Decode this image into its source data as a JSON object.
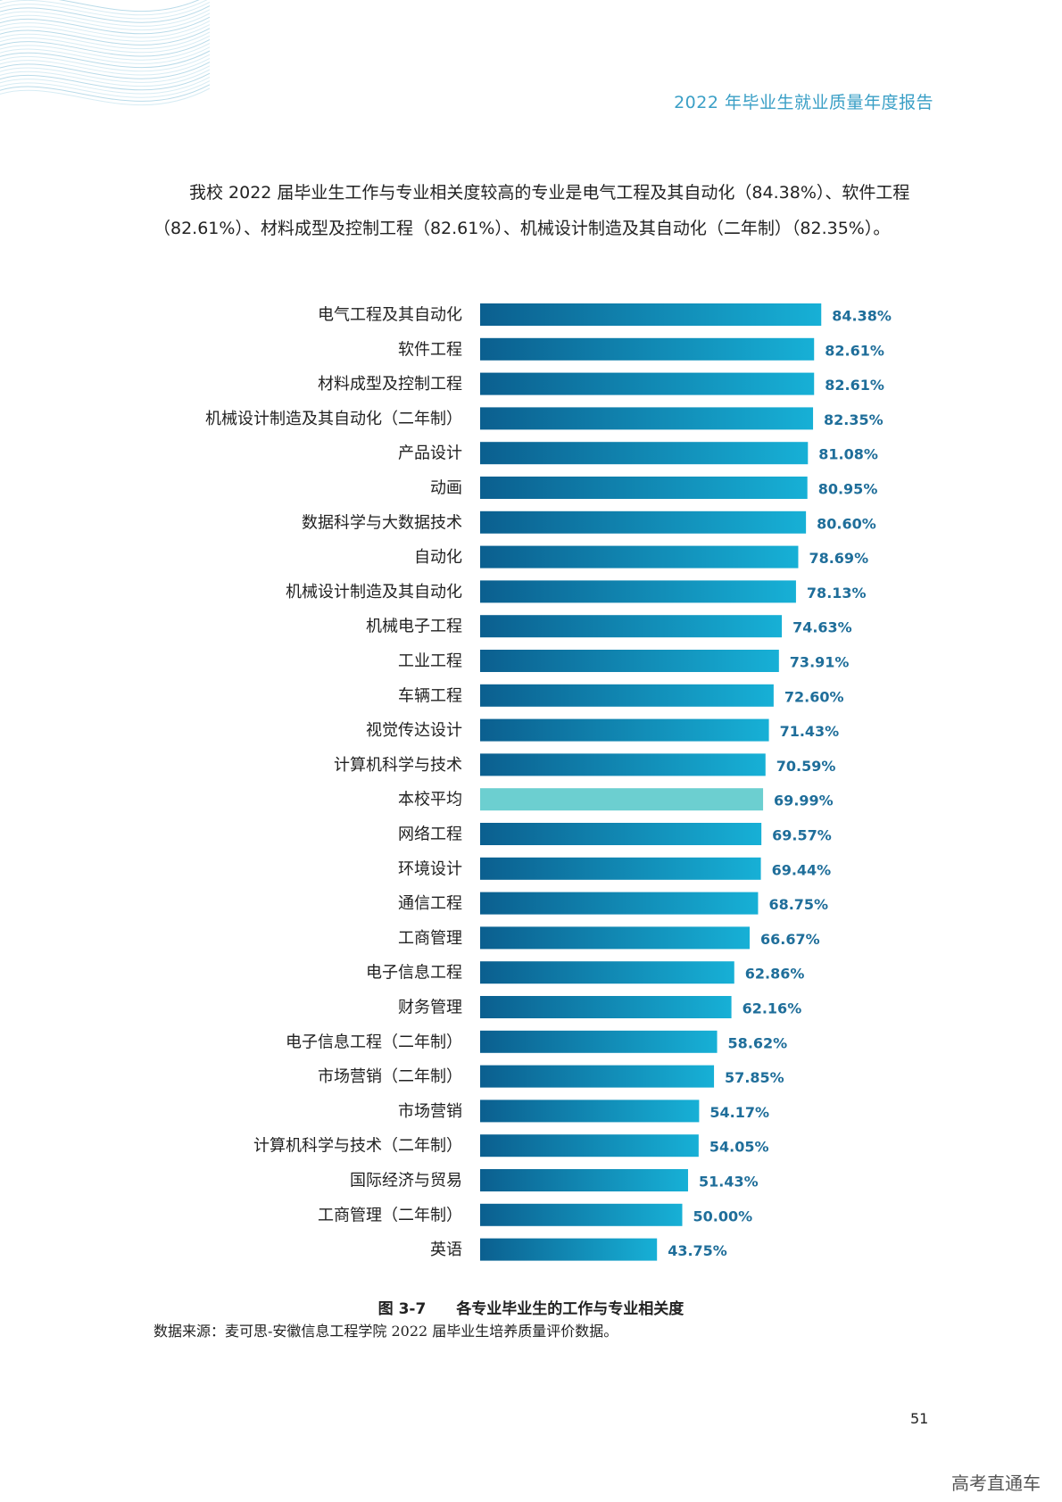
{
  "header": {
    "title": "2022 年毕业生就业质量年度报告"
  },
  "intro": "我校 2022 届毕业生工作与专业相关度较高的专业是电气工程及其自动化（84.38%）、软件工程（82.61%）、材料成型及控制工程（82.61%）、机械设计制造及其自动化（二年制）（82.35%）。",
  "caption": {
    "number": "图 3-7",
    "text": "各专业毕业生的工作与专业相关度"
  },
  "source": "数据来源：麦可思-安徽信息工程学院 2022 届毕业生培养质量评价数据。",
  "page_number": "51",
  "watermark": "高考直通车",
  "colors": {
    "bar_start": "#0b5f8f",
    "bar_end": "#17b0d6",
    "average_bar": "#6ccfd0",
    "value_text": "#1f6e9a",
    "header_text": "#3a9fc6"
  },
  "chart_data": {
    "type": "bar",
    "orientation": "horizontal",
    "categories": [
      "电气工程及其自动化",
      "软件工程",
      "材料成型及控制工程",
      "机械设计制造及其自动化（二年制）",
      "产品设计",
      "动画",
      "数据科学与大数据技术",
      "自动化",
      "机械设计制造及其自动化",
      "机械电子工程",
      "工业工程",
      "车辆工程",
      "视觉传达设计",
      "计算机科学与技术",
      "本校平均",
      "网络工程",
      "环境设计",
      "通信工程",
      "工商管理",
      "电子信息工程",
      "财务管理",
      "电子信息工程（二年制）",
      "市场营销（二年制）",
      "市场营销",
      "计算机科学与技术（二年制）",
      "国际经济与贸易",
      "工商管理（二年制）",
      "英语"
    ],
    "values": [
      84.38,
      82.61,
      82.61,
      82.35,
      81.08,
      80.95,
      80.6,
      78.69,
      78.13,
      74.63,
      73.91,
      72.6,
      71.43,
      70.59,
      69.99,
      69.57,
      69.44,
      68.75,
      66.67,
      62.86,
      62.16,
      58.62,
      57.85,
      54.17,
      54.05,
      51.43,
      50.0,
      43.75
    ],
    "value_labels": [
      "84.38%",
      "82.61%",
      "82.61%",
      "82.35%",
      "81.08%",
      "80.95%",
      "80.60%",
      "78.69%",
      "78.13%",
      "74.63%",
      "73.91%",
      "72.60%",
      "71.43%",
      "70.59%",
      "69.99%",
      "69.57%",
      "69.44%",
      "68.75%",
      "66.67%",
      "62.86%",
      "62.16%",
      "58.62%",
      "57.85%",
      "54.17%",
      "54.05%",
      "51.43%",
      "50.00%",
      "43.75%"
    ],
    "highlight_category": "本校平均",
    "xlim": [
      0,
      100
    ],
    "grid": false,
    "legend": "none"
  }
}
